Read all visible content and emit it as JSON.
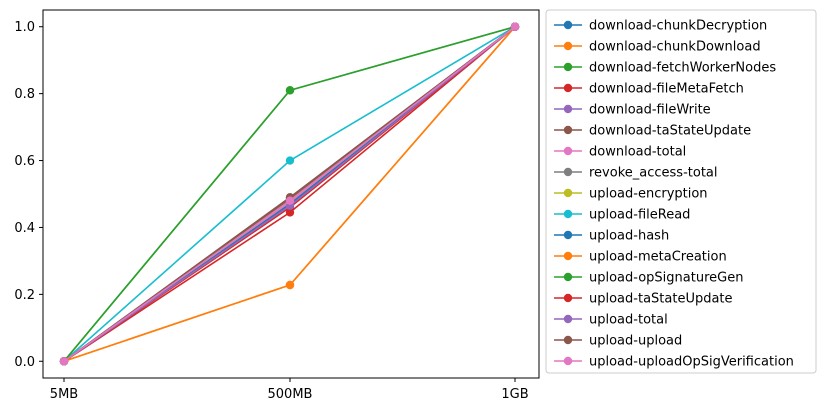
{
  "chart_data": {
    "type": "line",
    "title": "",
    "xlabel": "",
    "ylabel": "",
    "categories": [
      "5MB",
      "500MB",
      "1GB"
    ],
    "ylim": [
      -0.05,
      1.05
    ],
    "yticks": [
      "0.0",
      "0.2",
      "0.4",
      "0.6",
      "0.8",
      "1.0"
    ],
    "grid": false,
    "legend_position": "outside-right",
    "series": [
      {
        "name": "download-chunkDecryption",
        "color": "#1f77b4",
        "values": [
          0,
          0.47,
          1
        ]
      },
      {
        "name": "download-chunkDownload",
        "color": "#ff7f0e",
        "values": [
          0,
          0.228,
          1
        ]
      },
      {
        "name": "download-fetchWorkerNodes",
        "color": "#2ca02c",
        "values": [
          0,
          0.81,
          1
        ]
      },
      {
        "name": "download-fileMetaFetch",
        "color": "#d62728",
        "values": [
          0,
          0.46,
          1
        ]
      },
      {
        "name": "download-fileWrite",
        "color": "#9467bd",
        "values": [
          0,
          0.47,
          1
        ]
      },
      {
        "name": "download-taStateUpdate",
        "color": "#8c564b",
        "values": [
          0,
          0.485,
          1
        ]
      },
      {
        "name": "download-total",
        "color": "#e377c2",
        "values": [
          0,
          0.475,
          1
        ]
      },
      {
        "name": "revoke_access-total",
        "color": "#7f7f7f",
        "values": [
          0,
          0.49,
          1
        ]
      },
      {
        "name": "upload-encryption",
        "color": "#bcbd22",
        "values": [
          0,
          0.48,
          1
        ]
      },
      {
        "name": "upload-fileRead",
        "color": "#17becf",
        "values": [
          0,
          0.6,
          1
        ]
      },
      {
        "name": "upload-hash",
        "color": "#1f77b4",
        "values": [
          0,
          0.47,
          1
        ]
      },
      {
        "name": "upload-metaCreation",
        "color": "#ff7f0e",
        "values": [
          0,
          0.228,
          1
        ]
      },
      {
        "name": "upload-opSignatureGen",
        "color": "#2ca02c",
        "values": [
          0,
          0.81,
          1
        ]
      },
      {
        "name": "upload-taStateUpdate",
        "color": "#d62728",
        "values": [
          0,
          0.445,
          1
        ]
      },
      {
        "name": "upload-total",
        "color": "#9467bd",
        "values": [
          0,
          0.465,
          1
        ]
      },
      {
        "name": "upload-upload",
        "color": "#8c564b",
        "values": [
          0,
          0.49,
          1
        ]
      },
      {
        "name": "upload-uploadOpSigVerification",
        "color": "#e377c2",
        "values": [
          0,
          0.48,
          1
        ]
      }
    ]
  }
}
